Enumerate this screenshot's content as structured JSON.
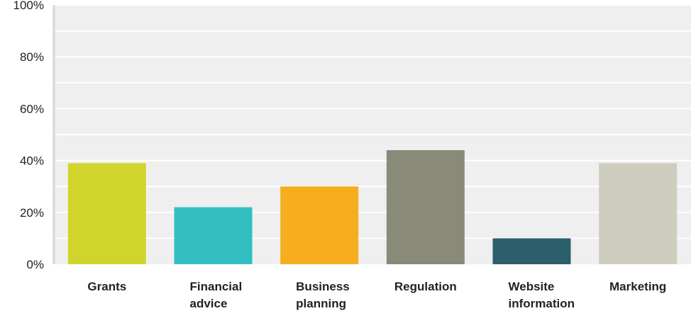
{
  "chart_data": {
    "type": "bar",
    "title": "",
    "xlabel": "",
    "ylabel": "",
    "categories": [
      "Grants",
      "Financial advice",
      "Business planning",
      "Regulation",
      "Website information",
      "Marketing"
    ],
    "category_lines": [
      [
        "Grants"
      ],
      [
        "Financial",
        "advice"
      ],
      [
        "Business",
        "planning"
      ],
      [
        "Regulation"
      ],
      [
        "Website",
        "information"
      ],
      [
        "Marketing"
      ]
    ],
    "values": [
      39,
      22,
      30,
      44,
      10,
      39
    ],
    "colors": [
      "#d1d52b",
      "#33bfc1",
      "#f6ae1f",
      "#898a78",
      "#2c5f6c",
      "#cfcdbe"
    ],
    "ylim": [
      0,
      100
    ],
    "yticks": [
      0,
      20,
      40,
      60,
      80,
      100
    ],
    "ytick_labels": [
      "0%",
      "20%",
      "40%",
      "60%",
      "80%",
      "100%"
    ],
    "grid": true,
    "legend": "none",
    "plot_background": "#efefef",
    "gridline_color": "#ffffff"
  }
}
